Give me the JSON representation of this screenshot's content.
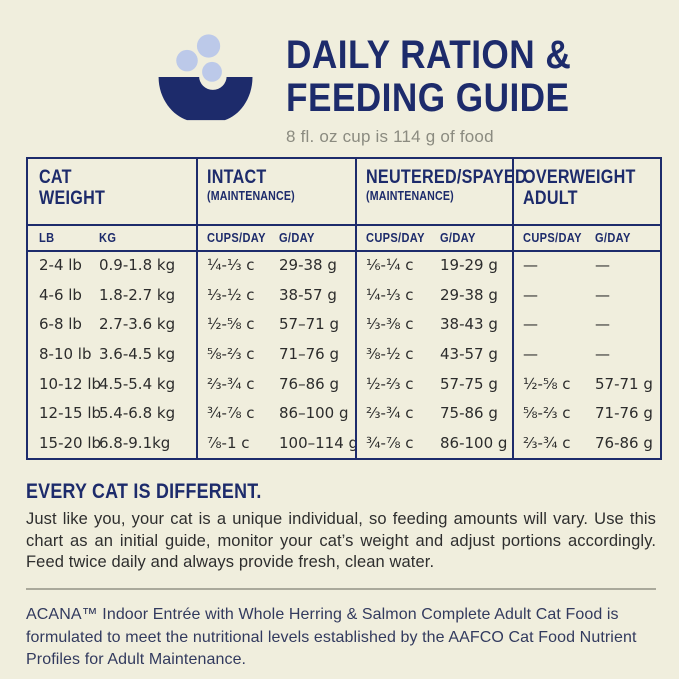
{
  "header": {
    "title_line1": "DAILY RATION &",
    "title_line2": "FEEDING GUIDE",
    "subtitle": "8 fl. oz cup is 114 g of food"
  },
  "table": {
    "columns": [
      {
        "label": "CAT\nWEIGHT",
        "note": "",
        "subs": [
          "LB",
          "KG"
        ]
      },
      {
        "label": "INTACT",
        "note": "(MAINTENANCE)",
        "subs": [
          "CUPS/DAY",
          "G/DAY"
        ]
      },
      {
        "label": "NEUTERED/SPAYED",
        "note": "(MAINTENANCE)",
        "subs": [
          "CUPS/DAY",
          "G/DAY"
        ]
      },
      {
        "label": "OVERWEIGHT\nADULT",
        "note": "",
        "subs": [
          "CUPS/DAY",
          "G/DAY"
        ]
      }
    ],
    "rows": [
      [
        "2-4 lb",
        "0.9-1.8 kg",
        "¼-⅓ c",
        "29-38 g",
        "⅙-¼ c",
        "19-29 g",
        "—",
        "—"
      ],
      [
        "4-6 lb",
        "1.8-2.7 kg",
        "⅓-½ c",
        "38-57 g",
        "¼-⅓ c",
        "29-38 g",
        "—",
        "—"
      ],
      [
        "6-8 lb",
        "2.7-3.6 kg",
        "½-⅝ c",
        "57–71 g",
        "⅓-⅜ c",
        "38-43 g",
        "—",
        "—"
      ],
      [
        "8-10 lb",
        "3.6-4.5 kg",
        "⅝-⅔ c",
        "71–76 g",
        "⅜-½ c",
        "43-57 g",
        "—",
        "—"
      ],
      [
        "10-12 lb",
        "4.5-5.4 kg",
        "⅔-¾ c",
        "76–86 g",
        "½-⅔ c",
        "57-75 g",
        "½-⅝ c",
        "57-71 g"
      ],
      [
        "12-15 lb",
        "5.4-6.8 kg",
        "¾-⅞ c",
        "86–100 g",
        "⅔-¾ c",
        "75-86 g",
        "⅝-⅔ c",
        "71-76 g"
      ],
      [
        "15-20 lb",
        "6.8-9.1kg",
        "⅞-1 c",
        "100–114 g",
        "¾-⅞ c",
        "86-100 g",
        "⅔-¾ c",
        "76-86 g"
      ]
    ]
  },
  "note": {
    "heading": "EVERY CAT IS DIFFERENT.",
    "body": "Just like you, your cat is a unique individual, so feeding amounts will vary. Use this chart as an initial guide, monitor your cat’s weight and adjust portions accordingly. Feed twice daily and always provide fresh, clean water."
  },
  "footer": {
    "text": "ACANA™ Indoor Entrée with Whole Herring & Salmon Complete Adult Cat Food is formulated to meet the nutritional levels established by the AAFCO Cat Food Nutrient Profiles for Adult Maintenance."
  },
  "colors": {
    "background": "#f0eedd",
    "navy": "#1d2b6b",
    "kibble_blue": "#bcc9e9",
    "subtitle_gray": "#8b8b80",
    "body_text": "#2e2e2e",
    "footer_text": "#323a5e",
    "divider": "#aaa99b"
  }
}
